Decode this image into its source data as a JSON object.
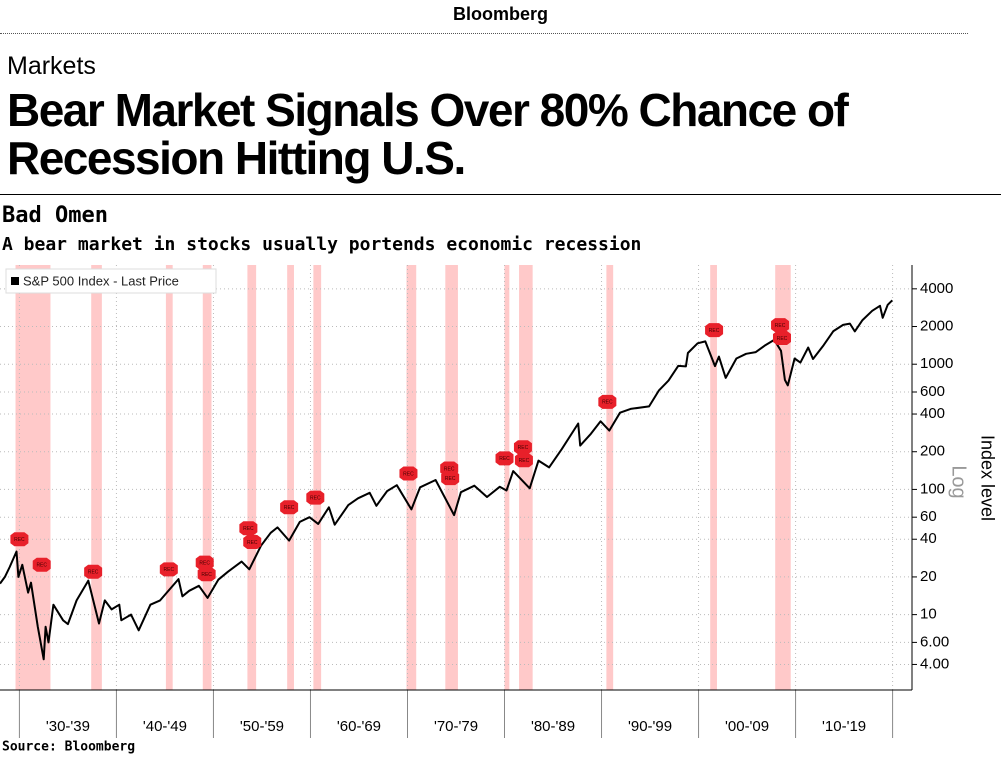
{
  "header": {
    "brand": "Bloomberg",
    "section": "Markets",
    "headline": "Bear Market Signals Over 80% Chance of Recession Hitting U.S."
  },
  "chart_data": {
    "type": "line",
    "title": "Bad Omen",
    "subtitle": "A bear market in stocks usually portends economic recession",
    "y_axis_label": "Index level",
    "scale_label": "Log",
    "source": "Source: Bloomberg",
    "log_scale": true,
    "grid": true,
    "legend_position": "top-left",
    "xlim": [
      1928,
      2022
    ],
    "xticks": [
      1930,
      1940,
      1950,
      1960,
      1970,
      1980,
      1990,
      2000,
      2010,
      2020
    ],
    "period_labels": [
      "'30-'39",
      "'40-'49",
      "'50-'59",
      "'60-'69",
      "'70-'79",
      "'80-'89",
      "'90-'99",
      "'00-'09",
      "'10-'19"
    ],
    "ylim": [
      2.5,
      6200
    ],
    "yticks": [
      {
        "value": 4,
        "label": "4.00"
      },
      {
        "value": 6,
        "label": "6.00"
      },
      10,
      20,
      40,
      60,
      100,
      200,
      400,
      600,
      1000,
      2000,
      4000
    ],
    "recession_color": "#ffc9c9",
    "recessions": [
      [
        1929.6,
        1933.2
      ],
      [
        1937.4,
        1938.5
      ],
      [
        1945.1,
        1945.8
      ],
      [
        1948.9,
        1949.8
      ],
      [
        1953.5,
        1954.4
      ],
      [
        1957.6,
        1958.3
      ],
      [
        1960.3,
        1961.1
      ],
      [
        1969.9,
        1970.9
      ],
      [
        1973.9,
        1975.2
      ],
      [
        1980.0,
        1980.5
      ],
      [
        1981.5,
        1982.9
      ],
      [
        1990.5,
        1991.2
      ],
      [
        2001.2,
        2001.9
      ],
      [
        2007.9,
        2009.5
      ]
    ],
    "marker_color": "#e8202a",
    "rec_markers": [
      {
        "x": 1930.0,
        "y": 40,
        "label": "REC"
      },
      {
        "x": 1932.3,
        "y": 25,
        "label": "REC"
      },
      {
        "x": 1937.6,
        "y": 22,
        "label": "REC"
      },
      {
        "x": 1945.4,
        "y": 23,
        "label": "REC"
      },
      {
        "x": 1949.1,
        "y": 26,
        "label": "REC"
      },
      {
        "x": 1949.3,
        "y": 21,
        "label": "REC"
      },
      {
        "x": 1953.6,
        "y": 49,
        "label": "REC"
      },
      {
        "x": 1954.0,
        "y": 38,
        "label": "REC"
      },
      {
        "x": 1957.8,
        "y": 72,
        "label": "REC"
      },
      {
        "x": 1960.5,
        "y": 86,
        "label": "REC"
      },
      {
        "x": 1970.1,
        "y": 134,
        "label": "REC"
      },
      {
        "x": 1974.3,
        "y": 147,
        "label": "REC"
      },
      {
        "x": 1974.4,
        "y": 123,
        "label": "REC"
      },
      {
        "x": 1980.0,
        "y": 177,
        "label": "REC"
      },
      {
        "x": 1981.9,
        "y": 217,
        "label": "REC"
      },
      {
        "x": 1982.0,
        "y": 171,
        "label": "REC"
      },
      {
        "x": 1990.6,
        "y": 500,
        "label": "REC"
      },
      {
        "x": 2001.6,
        "y": 1870,
        "label": "REC"
      },
      {
        "x": 2008.4,
        "y": 2050,
        "label": "REC"
      },
      {
        "x": 2008.6,
        "y": 1620,
        "label": "REC"
      }
    ],
    "series": [
      {
        "name": "S&P 500 Index - Last Price",
        "color": "#000000",
        "x": [
          1928.0,
          1928.5,
          1929.0,
          1929.7,
          1929.9,
          1930.3,
          1930.9,
          1931.2,
          1931.9,
          1932.5,
          1932.7,
          1933.0,
          1933.5,
          1934.5,
          1935.0,
          1935.9,
          1937.1,
          1938.2,
          1938.8,
          1939.5,
          1940.3,
          1940.5,
          1941.5,
          1942.3,
          1943.5,
          1944.5,
          1946.4,
          1946.8,
          1947.5,
          1948.5,
          1949.4,
          1950.5,
          1951.5,
          1952.9,
          1953.7,
          1954.9,
          1955.9,
          1956.6,
          1957.8,
          1958.9,
          1959.9,
          1960.8,
          1961.9,
          1962.5,
          1963.9,
          1964.9,
          1966.1,
          1966.8,
          1967.9,
          1968.9,
          1970.4,
          1971.3,
          1972.9,
          1974.8,
          1975.5,
          1976.9,
          1978.2,
          1979.5,
          1980.2,
          1980.9,
          1982.6,
          1983.5,
          1984.6,
          1985.9,
          1987.6,
          1987.8,
          1988.9,
          1989.9,
          1990.8,
          1991.9,
          1993.0,
          1994.9,
          1995.9,
          1996.9,
          1997.9,
          1998.7,
          1998.9,
          1999.9,
          2000.7,
          2001.7,
          2002.1,
          2002.8,
          2003.9,
          2004.9,
          2005.9,
          2006.9,
          2007.8,
          2008.5,
          2008.9,
          2009.2,
          2009.9,
          2010.5,
          2011.3,
          2011.8,
          2012.9,
          2013.9,
          2014.9,
          2015.6,
          2016.1,
          2016.9,
          2017.9,
          2018.7,
          2018.98,
          2019.5,
          2019.97
        ],
        "values": [
          17.7,
          20,
          24,
          31.9,
          20,
          25,
          15,
          18,
          8,
          4.4,
          8,
          6,
          12,
          9,
          8.4,
          13,
          18.7,
          8.5,
          13,
          11,
          12,
          9,
          10,
          7.5,
          12,
          13,
          19.2,
          14,
          15.5,
          17,
          13.6,
          19,
          22,
          26.5,
          23,
          35.5,
          45,
          49.7,
          39,
          55,
          60,
          53,
          72,
          52.3,
          75,
          85,
          94,
          74,
          97,
          108,
          69.3,
          104,
          119,
          62.3,
          95,
          107,
          87,
          105,
          98,
          140,
          102,
          170,
          150,
          210,
          336,
          224,
          278,
          350,
          295,
          410,
          440,
          460,
          615,
          740,
          970,
          960,
          1230,
          1470,
          1520,
          965,
          1150,
          777,
          1110,
          1210,
          1250,
          1420,
          1565,
          1280,
          750,
          677,
          1110,
          1030,
          1360,
          1100,
          1420,
          1840,
          2060,
          2110,
          1830,
          2250,
          2670,
          2930,
          2350,
          2980,
          3240
        ]
      }
    ]
  }
}
